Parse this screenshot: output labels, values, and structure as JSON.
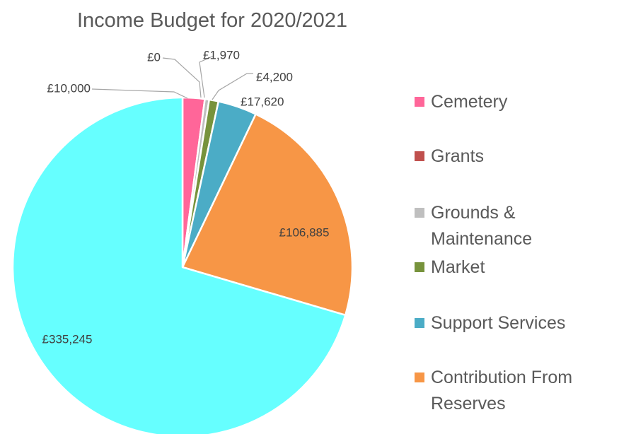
{
  "chart_data": {
    "type": "pie",
    "title": "Income Budget for 2020/2021",
    "slices": [
      {
        "label": "Cemetery",
        "value": 10000,
        "display": "£10,000",
        "color": "#ff6699"
      },
      {
        "label": "Grants",
        "value": 0,
        "display": "£0",
        "color": "#c0504d"
      },
      {
        "label": "Grounds & Maintenance",
        "legend_lines": [
          "Grounds &",
          "Maintenance"
        ],
        "value": 1970,
        "display": "£1,970",
        "color": "#bfbfbf"
      },
      {
        "label": "Market",
        "value": 4200,
        "display": "£4,200",
        "color": "#77933c"
      },
      {
        "label": "Support Services",
        "value": 17620,
        "display": "£17,620",
        "color": "#4bacc6"
      },
      {
        "label": "Contribution From Reserves",
        "legend_lines": [
          "Contribution From",
          "Reserves"
        ],
        "value": 106885,
        "display": "£106,885",
        "color": "#f79646"
      },
      {
        "label": "",
        "value": 335245,
        "display": "£335,245",
        "color": "#66ffff"
      }
    ],
    "legend_position": "right"
  }
}
